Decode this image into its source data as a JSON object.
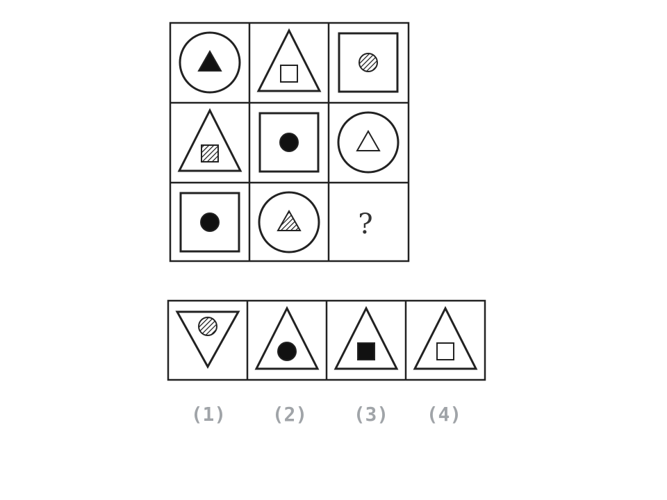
{
  "puzzle": {
    "grid": [
      [
        {
          "outer": "circle",
          "inner": "triangle",
          "fill": "solid"
        },
        {
          "outer": "triangle",
          "inner": "square",
          "fill": "hollow"
        },
        {
          "outer": "square",
          "inner": "circle",
          "fill": "hatched"
        }
      ],
      [
        {
          "outer": "triangle",
          "inner": "square",
          "fill": "hatched"
        },
        {
          "outer": "square",
          "inner": "circle",
          "fill": "solid"
        },
        {
          "outer": "circle",
          "inner": "triangle",
          "fill": "hollow"
        }
      ],
      [
        {
          "outer": "square",
          "inner": "circle",
          "fill": "solid"
        },
        {
          "outer": "circle",
          "inner": "triangle",
          "fill": "hatched"
        },
        {
          "outer": "unknown",
          "inner": "",
          "fill": ""
        }
      ]
    ],
    "missing_symbol": "?",
    "options": [
      {
        "label": "(1)",
        "outer": "inverted-triangle",
        "inner": "circle",
        "fill": "hatched"
      },
      {
        "label": "(2)",
        "outer": "triangle",
        "inner": "circle",
        "fill": "solid"
      },
      {
        "label": "(3)",
        "outer": "triangle",
        "inner": "square",
        "fill": "solid"
      },
      {
        "label": "(4)",
        "outer": "triangle",
        "inner": "square",
        "fill": "hollow"
      }
    ],
    "colors": {
      "stroke": "#222222",
      "solid": "#111111",
      "hollow": "#ffffff",
      "label": "#a0a4a8"
    }
  }
}
